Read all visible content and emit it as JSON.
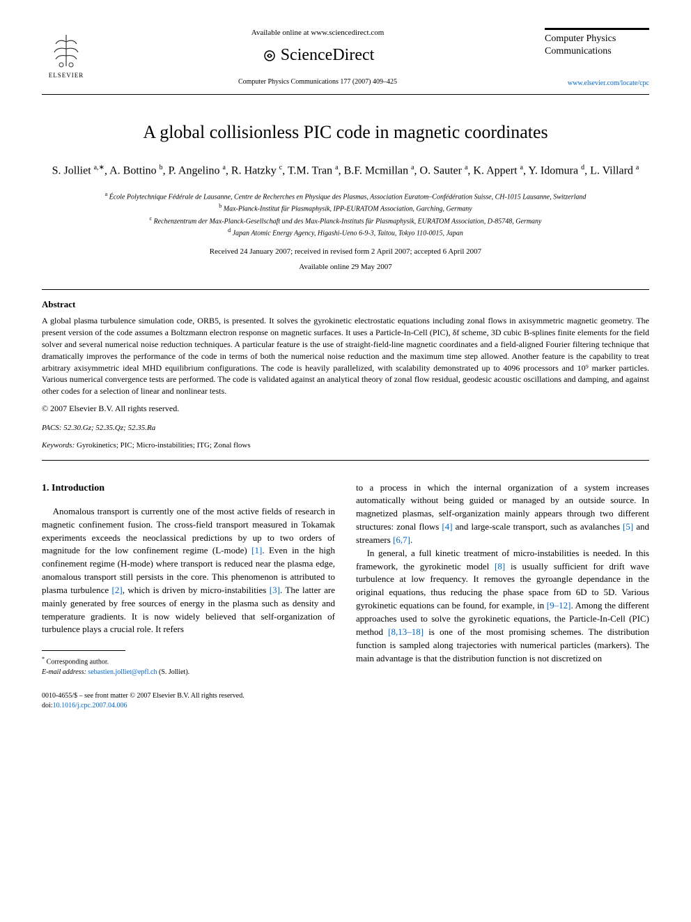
{
  "header": {
    "available_online": "Available online at www.sciencedirect.com",
    "sciencedirect": "ScienceDirect",
    "citation": "Computer Physics Communications 177 (2007) 409–425",
    "elsevier": "ELSEVIER",
    "journal_name": "Computer Physics Communications",
    "journal_url": "www.elsevier.com/locate/cpc"
  },
  "title": "A global collisionless PIC code in magnetic coordinates",
  "authors_html": "S. Jolliet <sup>a,∗</sup>, A. Bottino <sup>b</sup>, P. Angelino <sup>a</sup>, R. Hatzky <sup>c</sup>, T.M. Tran <sup>a</sup>, B.F. Mcmillan <sup>a</sup>, O. Sauter <sup>a</sup>, K. Appert <sup>a</sup>, Y. Idomura <sup>d</sup>, L. Villard <sup>a</sup>",
  "affiliations": {
    "a": "École Polytechnique Fédérale de Lausanne, Centre de Recherches en Physique des Plasmas, Association Euratom–Confédération Suisse, CH-1015 Lausanne, Switzerland",
    "b": "Max-Planck-Institut für Plasmaphysik, IPP-EURATOM Association, Garching, Germany",
    "c": "Rechenzentrum der Max-Planck-Gesellschaft und des Max-Planck-Instituts für Plasmaphysik, EURATOM Association, D-85748, Germany",
    "d": "Japan Atomic Energy Agency, Higashi-Ueno 6-9-3, Taitou, Tokyo 110-0015, Japan"
  },
  "dates": {
    "received": "Received 24 January 2007; received in revised form 2 April 2007; accepted 6 April 2007",
    "available": "Available online 29 May 2007"
  },
  "abstract": {
    "heading": "Abstract",
    "text": "A global plasma turbulence simulation code, ORB5, is presented. It solves the gyrokinetic electrostatic equations including zonal flows in axisymmetric magnetic geometry. The present version of the code assumes a Boltzmann electron response on magnetic surfaces. It uses a Particle-In-Cell (PIC), δf scheme, 3D cubic B-splines finite elements for the field solver and several numerical noise reduction techniques. A particular feature is the use of straight-field-line magnetic coordinates and a field-aligned Fourier filtering technique that dramatically improves the performance of the code in terms of both the numerical noise reduction and the maximum time step allowed. Another feature is the capability to treat arbitrary axisymmetric ideal MHD equilibrium configurations. The code is heavily parallelized, with scalability demonstrated up to 4096 processors and 10⁹ marker particles. Various numerical convergence tests are performed. The code is validated against an analytical theory of zonal flow residual, geodesic acoustic oscillations and damping, and against other codes for a selection of linear and nonlinear tests.",
    "copyright": "© 2007 Elsevier B.V. All rights reserved."
  },
  "pacs": "PACS: 52.30.Gz; 52.35.Qz; 52.35.Ra",
  "keywords": {
    "label": "Keywords:",
    "text": "Gyrokinetics; PIC; Micro-instabilities; ITG; Zonal flows"
  },
  "intro": {
    "heading": "1. Introduction",
    "col1_p1_a": "Anomalous transport is currently one of the most active fields of research in magnetic confinement fusion. The cross-field transport measured in Tokamak experiments exceeds the neoclassical predictions by up to two orders of magnitude for the low confinement regime (L-mode) ",
    "ref1": "[1]",
    "col1_p1_b": ". Even in the high confinement regime (H-mode) where transport is reduced near the plasma edge, anomalous transport still persists in the core. This phenomenon is attributed to plasma turbulence ",
    "ref2": "[2]",
    "col1_p1_c": ", which is driven by micro-instabilities ",
    "ref3": "[3]",
    "col1_p1_d": ". The latter are mainly generated by free sources of energy in the plasma such as density and temperature gradients. It is now widely believed that self-organization of turbulence plays a crucial role. It refers",
    "col2_p1_a": "to a process in which the internal organization of a system increases automatically without being guided or managed by an outside source. In magnetized plasmas, self-organization mainly appears through two different structures: zonal flows ",
    "ref4": "[4]",
    "col2_p1_b": " and large-scale transport, such as avalanches ",
    "ref5": "[5]",
    "col2_p1_c": " and streamers ",
    "ref67": "[6,7]",
    "col2_p1_d": ".",
    "col2_p2_a": "In general, a full kinetic treatment of micro-instabilities is needed. In this framework, the gyrokinetic model ",
    "ref8": "[8]",
    "col2_p2_b": " is usually sufficient for drift wave turbulence at low frequency. It removes the gyroangle dependance in the original equations, thus reducing the phase space from 6D to 5D. Various gyrokinetic equations can be found, for example, in ",
    "ref912": "[9–12]",
    "col2_p2_c": ". Among the different approaches used to solve the gyrokinetic equations, the Particle-In-Cell (PIC) method ",
    "ref81318": "[8,13–18]",
    "col2_p2_d": " is one of the most promising schemes. The distribution function is sampled along trajectories with numerical particles (markers). The main advantage is that the distribution function is not discretized on"
  },
  "footnote": {
    "corresponding": "Corresponding author.",
    "email_label": "E-mail address:",
    "email": "sebastien.jolliet@epfl.ch",
    "email_name": "(S. Jolliet)."
  },
  "footer": {
    "issn": "0010-4655/$ – see front matter © 2007 Elsevier B.V. All rights reserved.",
    "doi_label": "doi:",
    "doi": "10.1016/j.cpc.2007.04.006"
  },
  "colors": {
    "link": "#0066cc",
    "text": "#000000",
    "bg": "#ffffff"
  }
}
